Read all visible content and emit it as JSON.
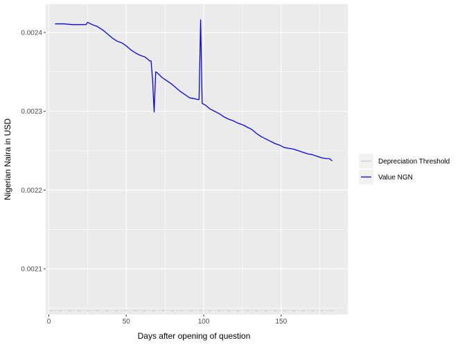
{
  "chart_data": {
    "type": "line",
    "title": "",
    "xlabel": "Days after opening of question",
    "ylabel": "Nigerian Naira in USD",
    "xlim": [
      -2,
      193
    ],
    "ylim": [
      0.002042,
      0.002436
    ],
    "x_ticks": [
      0,
      50,
      100,
      150
    ],
    "x_tick_labels": [
      "0",
      "50",
      "100",
      "150"
    ],
    "y_ticks": [
      0.0021,
      0.0022,
      0.0023,
      0.0024
    ],
    "y_tick_labels": [
      "0.0021",
      "0.0022",
      "0.0023",
      "0.0024"
    ],
    "grid": true,
    "legend_position": "right",
    "series": [
      {
        "name": "Depreciation Threshold",
        "color": "#c8c8c8",
        "style": "dashed",
        "points": [
          [
            0,
            0.002047
          ],
          [
            184,
            0.002047
          ]
        ]
      },
      {
        "name": "Value NGN",
        "color": "#0000ff",
        "style": "solid",
        "points": [
          [
            4,
            0.002411
          ],
          [
            10,
            0.002411
          ],
          [
            15,
            0.00241
          ],
          [
            20,
            0.00241
          ],
          [
            24,
            0.00241
          ],
          [
            25,
            0.002413
          ],
          [
            28,
            0.00241
          ],
          [
            31,
            0.002408
          ],
          [
            35,
            0.002403
          ],
          [
            38,
            0.002398
          ],
          [
            41,
            0.002393
          ],
          [
            44,
            0.002389
          ],
          [
            47,
            0.002387
          ],
          [
            50,
            0.002383
          ],
          [
            53,
            0.002378
          ],
          [
            56,
            0.002374
          ],
          [
            59,
            0.002371
          ],
          [
            62,
            0.002369
          ],
          [
            64,
            0.002366
          ],
          [
            65,
            0.002364
          ],
          [
            66,
            0.002364
          ],
          [
            67,
            0.00234
          ],
          [
            68,
            0.002299
          ],
          [
            69,
            0.00235
          ],
          [
            70,
            0.002349
          ],
          [
            73,
            0.002343
          ],
          [
            76,
            0.002339
          ],
          [
            79,
            0.002335
          ],
          [
            82,
            0.00233
          ],
          [
            85,
            0.002325
          ],
          [
            88,
            0.002321
          ],
          [
            91,
            0.002317
          ],
          [
            94,
            0.002316
          ],
          [
            96,
            0.002315
          ],
          [
            97,
            0.002315
          ],
          [
            98,
            0.002416
          ],
          [
            99,
            0.00231
          ],
          [
            101,
            0.002308
          ],
          [
            104,
            0.002303
          ],
          [
            107,
            0.0023
          ],
          [
            110,
            0.002297
          ],
          [
            113,
            0.002293
          ],
          [
            116,
            0.00229
          ],
          [
            119,
            0.002288
          ],
          [
            122,
            0.002285
          ],
          [
            125,
            0.002283
          ],
          [
            128,
            0.00228
          ],
          [
            131,
            0.002277
          ],
          [
            134,
            0.002272
          ],
          [
            137,
            0.002268
          ],
          [
            140,
            0.002265
          ],
          [
            143,
            0.002262
          ],
          [
            146,
            0.002259
          ],
          [
            149,
            0.002257
          ],
          [
            152,
            0.002254
          ],
          [
            155,
            0.002253
          ],
          [
            158,
            0.002252
          ],
          [
            161,
            0.00225
          ],
          [
            164,
            0.002248
          ],
          [
            167,
            0.002246
          ],
          [
            170,
            0.002245
          ],
          [
            173,
            0.002243
          ],
          [
            176,
            0.002241
          ],
          [
            179,
            0.00224
          ],
          [
            181,
            0.00224
          ],
          [
            183,
            0.002237
          ]
        ]
      }
    ]
  }
}
